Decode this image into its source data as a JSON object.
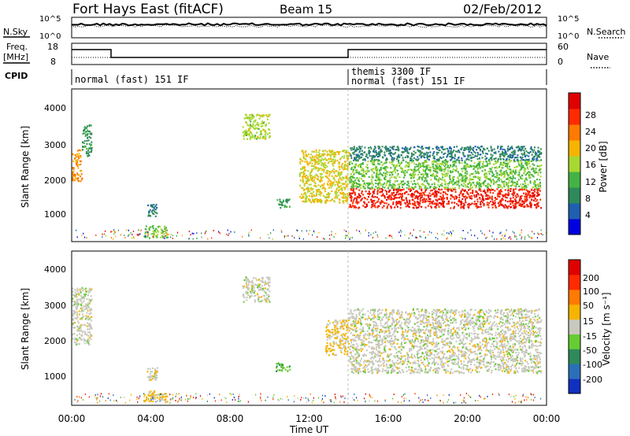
{
  "header": {
    "station": "Fort Hays East (fitACF)",
    "beam": "Beam 15",
    "date": "02/Feb/2012"
  },
  "noise_panel": {
    "left_label": "N.Sky",
    "right_label": "N.Search",
    "left_ticks": [
      "10^5",
      "10^0"
    ],
    "right_ticks": [
      "10^5",
      "10^0"
    ]
  },
  "freq_panel": {
    "left_label_line1": "Freq.",
    "left_label_line2": "[MHz]",
    "left_ticks": [
      "18",
      "8"
    ],
    "right_ticks": [
      "60",
      "0"
    ],
    "right_label": "Nave"
  },
  "cpid_panel": {
    "label": "CPID",
    "segments": [
      {
        "text": "normal (fast) 151 IF",
        "start_hour": 0,
        "end_hour": 14.1
      },
      {
        "text": "themis 3300 IF",
        "start_hour": 14.1,
        "end_hour": 24
      },
      {
        "text": "normal (fast) 151 IF",
        "start_hour": 14.1,
        "end_hour": 24
      }
    ]
  },
  "power_panel": {
    "ylabel": "Slant Range [km]",
    "yticks": [
      "4000",
      "3000",
      "2000",
      "1000"
    ],
    "colorbar_label": "Power [dB]",
    "colorbar_ticks": [
      "28",
      "24",
      "20",
      "16",
      "12",
      "8",
      "4"
    ],
    "colors": [
      "#0000e0",
      "#1f5fb0",
      "#2e8a5a",
      "#44b344",
      "#a8d832",
      "#f5b400",
      "#ff7a00",
      "#ff2a00",
      "#e00000"
    ]
  },
  "velocity_panel": {
    "ylabel": "Slant Range [km]",
    "yticks": [
      "4000",
      "3000",
      "2000",
      "1000"
    ],
    "colorbar_label": "Velocity [m s⁻¹]",
    "colorbar_ticks": [
      "200",
      "100",
      "50",
      "15",
      "-15",
      "-50",
      "-100",
      "-200"
    ],
    "colors": [
      "#1030c0",
      "#2b6fb8",
      "#2e8a5a",
      "#66cc33",
      "#c8c8be",
      "#f5b400",
      "#ff7a00",
      "#ff2a00",
      "#e00000"
    ]
  },
  "xaxis": {
    "title": "Time UT",
    "ticks": [
      "00:00",
      "04:00",
      "08:00",
      "12:00",
      "16:00",
      "20:00",
      "00:00"
    ]
  },
  "chart_data": {
    "type": "heatmap",
    "title": "Fort Hays East (fitACF) Beam 15 02/Feb/2012",
    "xlabel": "Time UT",
    "ylabel": "Slant Range [km]",
    "xlim": [
      0,
      24
    ],
    "ylim": [
      180,
      4500
    ],
    "panels": [
      {
        "name": "Power [dB]",
        "zlim": [
          0,
          32
        ],
        "echo_regions": [
          {
            "t_start": 0.0,
            "t_end": 0.5,
            "r_low": 1900,
            "r_high": 2800,
            "value": 22
          },
          {
            "t_start": 0.5,
            "t_end": 1.0,
            "r_low": 2600,
            "r_high": 3500,
            "value": 10
          },
          {
            "t_start": 3.6,
            "t_end": 4.8,
            "r_low": 300,
            "r_high": 650,
            "value": 14
          },
          {
            "t_start": 3.8,
            "t_end": 4.3,
            "r_low": 900,
            "r_high": 1250,
            "value": 8
          },
          {
            "t_start": 8.6,
            "t_end": 10.0,
            "r_low": 3100,
            "r_high": 3800,
            "value": 16
          },
          {
            "t_start": 10.3,
            "t_end": 11.0,
            "r_low": 1150,
            "r_high": 1400,
            "value": 10
          },
          {
            "t_start": 11.5,
            "t_end": 14.0,
            "r_low": 1300,
            "r_high": 2800,
            "value": 18
          },
          {
            "t_start": 14.0,
            "t_end": 23.7,
            "r_low": 1150,
            "r_high": 1700,
            "value": 28
          },
          {
            "t_start": 14.0,
            "t_end": 23.7,
            "r_low": 1700,
            "r_high": 2500,
            "value": 14
          },
          {
            "t_start": 14.0,
            "t_end": 23.7,
            "r_low": 2500,
            "r_high": 2900,
            "value": 8
          }
        ]
      },
      {
        "name": "Velocity [m s⁻¹]",
        "zlim": [
          -200,
          200
        ],
        "echo_regions": [
          {
            "t_start": 0.0,
            "t_end": 1.0,
            "r_low": 1900,
            "r_high": 3500,
            "value": 0
          },
          {
            "t_start": 3.6,
            "t_end": 4.8,
            "r_low": 300,
            "r_high": 650,
            "value": 30
          },
          {
            "t_start": 3.8,
            "t_end": 4.3,
            "r_low": 900,
            "r_high": 1250,
            "value": 0
          },
          {
            "t_start": 8.6,
            "t_end": 10.0,
            "r_low": 3100,
            "r_high": 3800,
            "value": 0
          },
          {
            "t_start": 10.3,
            "t_end": 11.0,
            "r_low": 1150,
            "r_high": 1400,
            "value": -50
          },
          {
            "t_start": 12.8,
            "t_end": 14.0,
            "r_low": 1600,
            "r_high": 2600,
            "value": 30
          },
          {
            "t_start": 14.0,
            "t_end": 23.7,
            "r_low": 1100,
            "r_high": 2900,
            "value": 0
          }
        ]
      }
    ]
  }
}
